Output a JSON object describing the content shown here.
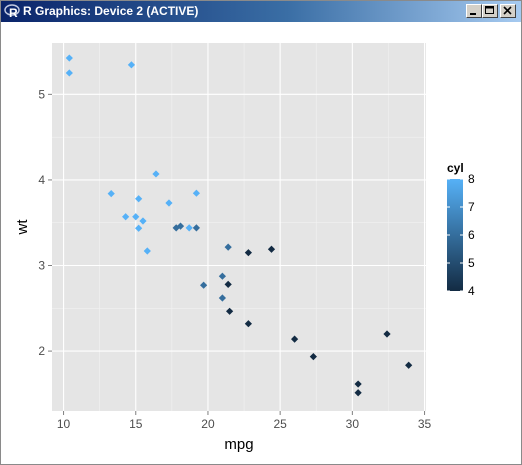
{
  "window": {
    "title": "R Graphics: Device 2 (ACTIVE)",
    "icon": "r-logo-icon",
    "buttons": [
      "minimize-icon",
      "maximize-icon",
      "close-icon"
    ]
  },
  "colors": {
    "panel_background": "#e5e5e5",
    "grid_major": "#ffffff",
    "grid_minor": "#f2f2f2",
    "low": "#132b43",
    "high": "#56b1f7"
  },
  "chart_data": {
    "type": "scatter",
    "xlabel": "mpg",
    "ylabel": "wt",
    "xlim": [
      9.2,
      35.1
    ],
    "ylim": [
      1.3,
      5.6
    ],
    "x_ticks": [
      10,
      15,
      20,
      25,
      30,
      35
    ],
    "y_ticks": [
      2,
      3,
      4,
      5
    ],
    "grid": true,
    "color_by": "cyl",
    "legend": {
      "title": "cyl",
      "position": "right",
      "ticks": [
        4,
        5,
        6,
        7,
        8
      ],
      "range": [
        4,
        8
      ]
    },
    "points": [
      {
        "x": 21.0,
        "y": 2.62,
        "c": 6
      },
      {
        "x": 21.0,
        "y": 2.875,
        "c": 6
      },
      {
        "x": 22.8,
        "y": 2.32,
        "c": 4
      },
      {
        "x": 21.4,
        "y": 3.215,
        "c": 6
      },
      {
        "x": 18.7,
        "y": 3.44,
        "c": 8
      },
      {
        "x": 18.1,
        "y": 3.46,
        "c": 6
      },
      {
        "x": 14.3,
        "y": 3.57,
        "c": 8
      },
      {
        "x": 24.4,
        "y": 3.19,
        "c": 4
      },
      {
        "x": 22.8,
        "y": 3.15,
        "c": 4
      },
      {
        "x": 19.2,
        "y": 3.44,
        "c": 6
      },
      {
        "x": 17.8,
        "y": 3.44,
        "c": 6
      },
      {
        "x": 16.4,
        "y": 4.07,
        "c": 8
      },
      {
        "x": 17.3,
        "y": 3.73,
        "c": 8
      },
      {
        "x": 15.2,
        "y": 3.78,
        "c": 8
      },
      {
        "x": 10.4,
        "y": 5.25,
        "c": 8
      },
      {
        "x": 10.4,
        "y": 5.424,
        "c": 8
      },
      {
        "x": 14.7,
        "y": 5.345,
        "c": 8
      },
      {
        "x": 32.4,
        "y": 2.2,
        "c": 4
      },
      {
        "x": 30.4,
        "y": 1.615,
        "c": 4
      },
      {
        "x": 33.9,
        "y": 1.835,
        "c": 4
      },
      {
        "x": 21.5,
        "y": 2.465,
        "c": 4
      },
      {
        "x": 15.5,
        "y": 3.52,
        "c": 8
      },
      {
        "x": 15.2,
        "y": 3.435,
        "c": 8
      },
      {
        "x": 13.3,
        "y": 3.84,
        "c": 8
      },
      {
        "x": 19.2,
        "y": 3.845,
        "c": 8
      },
      {
        "x": 27.3,
        "y": 1.935,
        "c": 4
      },
      {
        "x": 26.0,
        "y": 2.14,
        "c": 4
      },
      {
        "x": 30.4,
        "y": 1.513,
        "c": 4
      },
      {
        "x": 15.8,
        "y": 3.17,
        "c": 8
      },
      {
        "x": 19.7,
        "y": 2.77,
        "c": 6
      },
      {
        "x": 15.0,
        "y": 3.57,
        "c": 8
      },
      {
        "x": 21.4,
        "y": 2.78,
        "c": 4
      }
    ]
  }
}
